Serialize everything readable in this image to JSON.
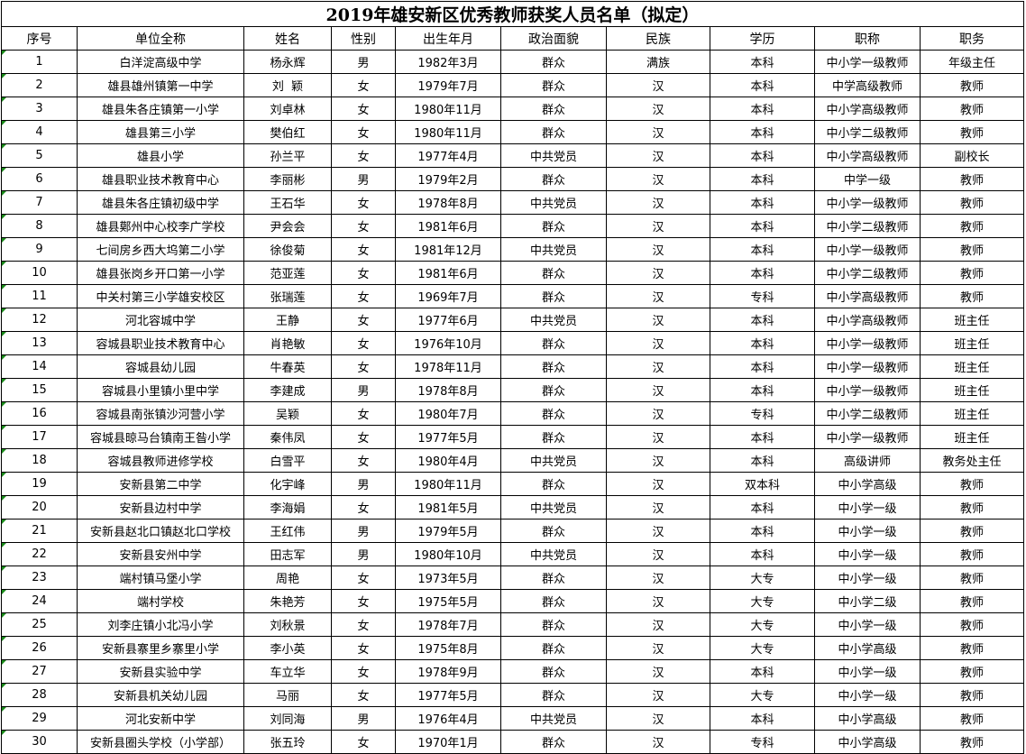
{
  "title": "2019年雄安新区优秀教师获奖人员名单（拟定）",
  "headers": [
    "序号",
    "单位全称",
    "姓名",
    "性别",
    "出生年月",
    "政治面貌",
    "民族",
    "学历",
    "职称",
    "职务"
  ],
  "rows": [
    [
      "1",
      "白洋淀高级中学",
      "杨永辉",
      "男",
      "1982年3月",
      "群众",
      "满族",
      "本科",
      "中小学一级教师",
      "年级主任"
    ],
    [
      "2",
      "雄县雄州镇第一中学",
      "刘  颖",
      "女",
      "1979年7月",
      "群众",
      "汉",
      "本科",
      "中学高级教师",
      "教师"
    ],
    [
      "3",
      "雄县朱各庄镇第一小学",
      "刘卓林",
      "女",
      "1980年11月",
      "群众",
      "汉",
      "本科",
      "中小学高级教师",
      "教师"
    ],
    [
      "4",
      "雄县第三小学",
      "樊伯红",
      "女",
      "1980年11月",
      "群众",
      "汉",
      "本科",
      "中小学二级教师",
      "教师"
    ],
    [
      "5",
      "雄县小学",
      "孙兰平",
      "女",
      "1977年4月",
      "中共党员",
      "汉",
      "本科",
      "中小学高级教师",
      "副校长"
    ],
    [
      "6",
      "雄县职业技术教育中心",
      "李丽彬",
      "男",
      "1979年2月",
      "群众",
      "汉",
      "本科",
      "中学一级",
      "教师"
    ],
    [
      "7",
      "雄县朱各庄镇初级中学",
      "王石华",
      "女",
      "1978年8月",
      "中共党员",
      "汉",
      "本科",
      "中小学一级教师",
      "教师"
    ],
    [
      "8",
      "雄县鄚州中心校李广学校",
      "尹会会",
      "女",
      "1981年6月",
      "群众",
      "汉",
      "本科",
      "中小学二级教师",
      "教师"
    ],
    [
      "9",
      "七间房乡西大坞第二小学",
      "徐俊菊",
      "女",
      "1981年12月",
      "中共党员",
      "汉",
      "本科",
      "中小学一级教师",
      "教师"
    ],
    [
      "10",
      "雄县张岗乡开口第一小学",
      "范亚莲",
      "女",
      "1981年6月",
      "群众",
      "汉",
      "本科",
      "中小学二级教师",
      "教师"
    ],
    [
      "11",
      "中关村第三小学雄安校区",
      "张瑞莲",
      "女",
      "1969年7月",
      "群众",
      "汉",
      "专科",
      "中小学高级教师",
      "教师"
    ],
    [
      "12",
      "河北容城中学",
      "王静",
      "女",
      "1977年6月",
      "中共党员",
      "汉",
      "本科",
      "中小学高级教师",
      "班主任"
    ],
    [
      "13",
      "容城县职业技术教育中心",
      "肖艳敏",
      "女",
      "1976年10月",
      "群众",
      "汉",
      "本科",
      "中小学一级教师",
      "班主任"
    ],
    [
      "14",
      "容城县幼儿园",
      "牛春英",
      "女",
      "1978年11月",
      "群众",
      "汉",
      "本科",
      "中小学一级教师",
      "班主任"
    ],
    [
      "15",
      "容城县小里镇小里中学",
      "李建成",
      "男",
      "1978年8月",
      "群众",
      "汉",
      "本科",
      "中小学一级教师",
      "班主任"
    ],
    [
      "16",
      "容城县南张镇沙河营小学",
      "吴颖",
      "女",
      "1980年7月",
      "群众",
      "汉",
      "专科",
      "中小学二级教师",
      "班主任"
    ],
    [
      "17",
      "容城县晾马台镇南王昝小学",
      "秦伟凤",
      "女",
      "1977年5月",
      "群众",
      "汉",
      "本科",
      "中小学一级教师",
      "班主任"
    ],
    [
      "18",
      "容城县教师进修学校",
      "白雪平",
      "女",
      "1980年4月",
      "中共党员",
      "汉",
      "本科",
      "高级讲师",
      "教务处主任"
    ],
    [
      "19",
      "安新县第二中学",
      "化宇峰",
      "男",
      "1980年11月",
      "群众",
      "汉",
      "双本科",
      "中小学高级",
      "教师"
    ],
    [
      "20",
      "安新县边村中学",
      "李海娟",
      "女",
      "1981年5月",
      "中共党员",
      "汉",
      "本科",
      "中小学一级",
      "教师"
    ],
    [
      "21",
      "安新县赵北口镇赵北口学校",
      "王红伟",
      "男",
      "1979年5月",
      "群众",
      "汉",
      "本科",
      "中小学一级",
      "教师"
    ],
    [
      "22",
      "安新县安州中学",
      "田志军",
      "男",
      "1980年10月",
      "中共党员",
      "汉",
      "本科",
      "中小学一级",
      "教师"
    ],
    [
      "23",
      "端村镇马堡小学",
      "周艳",
      "女",
      "1973年5月",
      "群众",
      "汉",
      "大专",
      "中小学一级",
      "教师"
    ],
    [
      "24",
      "端村学校",
      "朱艳芳",
      "女",
      "1975年5月",
      "群众",
      "汉",
      "大专",
      "中小学二级",
      "教师"
    ],
    [
      "25",
      "刘李庄镇小北冯小学",
      "刘秋景",
      "女",
      "1978年7月",
      "群众",
      "汉",
      "大专",
      "中小学一级",
      "教师"
    ],
    [
      "26",
      "安新县寨里乡寨里小学",
      "李小英",
      "女",
      "1975年8月",
      "群众",
      "汉",
      "大专",
      "中小学高级",
      "教师"
    ],
    [
      "27",
      "安新县实验中学",
      "车立华",
      "女",
      "1978年9月",
      "群众",
      "汉",
      "本科",
      "中小学一级",
      "教师"
    ],
    [
      "28",
      "安新县机关幼儿园",
      "马丽",
      "女",
      "1977年5月",
      "群众",
      "汉",
      "大专",
      "中小学一级",
      "教师"
    ],
    [
      "29",
      "河北安新中学",
      "刘同海",
      "男",
      "1976年4月",
      "中共党员",
      "汉",
      "本科",
      "中小学高级",
      "教师"
    ],
    [
      "30",
      "安新县圈头学校（小学部）",
      "张五玲",
      "女",
      "1970年1月",
      "群众",
      "汉",
      "专科",
      "中小学高级",
      "教师"
    ]
  ],
  "colors": {
    "border": "#000000",
    "indicator": "#1a8a1a"
  }
}
